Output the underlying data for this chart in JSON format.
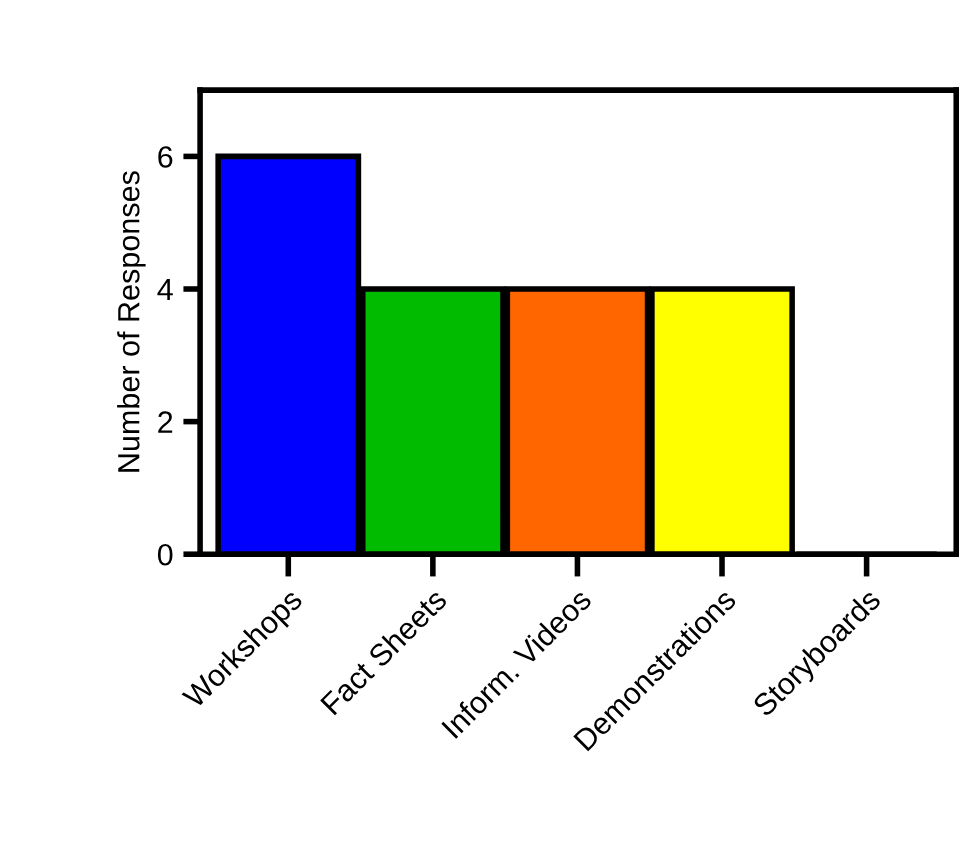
{
  "chart_data": {
    "type": "bar",
    "ylabel": "Number of Responses",
    "categories": [
      "Workshops",
      "Fact Sheets",
      "Inform. Videos",
      "Demonstrations",
      "Storyboards"
    ],
    "values": [
      6,
      4,
      4,
      4,
      0
    ],
    "colors": [
      "#0000ff",
      "#00bb00",
      "#ff6600",
      "#ffff00",
      "#ffffff"
    ],
    "ylim": [
      0,
      7
    ],
    "yticks": [
      0,
      2,
      4,
      6
    ],
    "grid": false,
    "legend": false
  }
}
